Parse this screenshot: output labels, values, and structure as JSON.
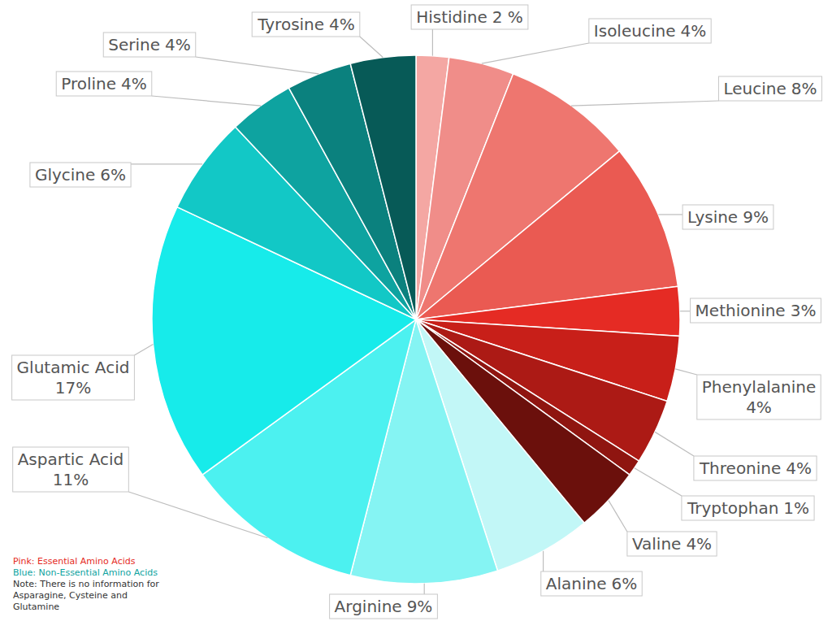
{
  "chart_data": {
    "type": "pie",
    "categories": [
      "Histidine",
      "Isoleucine",
      "Leucine",
      "Lysine",
      "Methionine",
      "Phenylalanine",
      "Threonine",
      "Tryptophan",
      "Valine",
      "Alanine",
      "Arginine",
      "Aspartic Acid",
      "Glutamic Acid",
      "Glycine",
      "Proline",
      "Serine",
      "Tyrosine"
    ],
    "values": [
      2,
      4,
      8,
      9,
      3,
      4,
      4,
      1,
      4,
      6,
      9,
      11,
      17,
      6,
      4,
      4,
      4
    ],
    "value_labels": [
      "2 %",
      "4%",
      "8%",
      "9%",
      "3%",
      "4%",
      "4%",
      "1%",
      "4%",
      "6%",
      "9%",
      "11%",
      "17%",
      "6%",
      "4%",
      "4%",
      "4%"
    ],
    "colors": [
      "#f4a7a3",
      "#f08d89",
      "#ee766f",
      "#ea5a52",
      "#e52b24",
      "#c81f19",
      "#ac1a15",
      "#8f1510",
      "#6b100c",
      "#c2f7f7",
      "#85f4f3",
      "#4cf1f0",
      "#17ebea",
      "#12c8c6",
      "#0ea3a0",
      "#0b817e",
      "#075a57"
    ],
    "data_labels": true,
    "annotations": [
      "Pink: Essential Amino Acids",
      "Blue: Non-Essential Amino Acids",
      "Note: There is no information for Asparagine, Cysteine and Glutamine"
    ]
  }
}
